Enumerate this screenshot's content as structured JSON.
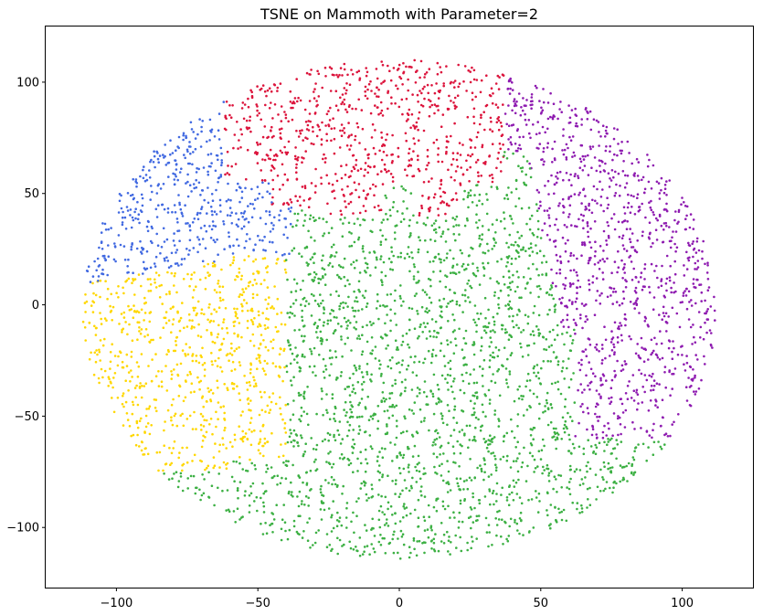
{
  "chart_data": {
    "type": "scatter",
    "title": "TSNE on Mammoth with Parameter=2",
    "xlabel": "",
    "ylabel": "",
    "xlim": [
      -125,
      125
    ],
    "ylim": [
      -127,
      125
    ],
    "xticks": [
      -100,
      -50,
      0,
      50,
      100
    ],
    "yticks": [
      -100,
      -50,
      0,
      50,
      100
    ],
    "xtick_labels": [
      "−100",
      "−50",
      "0",
      "50",
      "100"
    ],
    "ytick_labels": [
      "−100",
      "−50",
      "0",
      "50",
      "100"
    ],
    "grid": false,
    "legend": "none",
    "cloud": {
      "cx": 0,
      "cy": -2,
      "rx": 112,
      "ry": 112
    },
    "series": [
      {
        "color": "#dc143c",
        "region_note": "top",
        "approx_points": 700
      },
      {
        "color": "#4169e1",
        "region_note": "upper-left",
        "approx_points": 550
      },
      {
        "color": "#ffd700",
        "region_note": "left",
        "approx_points": 650
      },
      {
        "color": "#8e1bb0",
        "region_note": "right",
        "approx_points": 750
      },
      {
        "color": "#3cb043",
        "region_note": "center-bottom",
        "approx_points": 2600
      }
    ]
  }
}
